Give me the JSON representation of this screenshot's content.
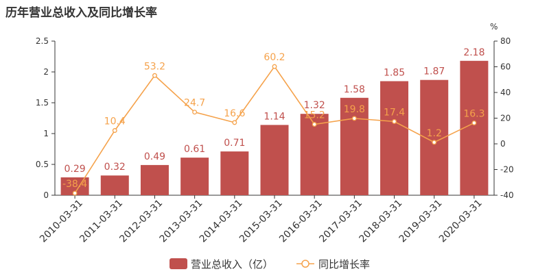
{
  "chart_data": {
    "type": "bar",
    "title": "历年营业总收入及同比增长率",
    "categories": [
      "2010-03-31",
      "2011-03-31",
      "2012-03-31",
      "2013-03-31",
      "2014-03-31",
      "2015-03-31",
      "2016-03-31",
      "2017-03-31",
      "2018-03-31",
      "2019-03-31",
      "2020-03-31"
    ],
    "series": [
      {
        "name": "营业总收入（亿）",
        "type": "bar",
        "axis": "left",
        "color": "#c0504d",
        "values": [
          0.29,
          0.32,
          0.49,
          0.61,
          0.71,
          1.14,
          1.32,
          1.58,
          1.85,
          1.87,
          2.18
        ]
      },
      {
        "name": "同比增长率",
        "type": "line",
        "axis": "right",
        "color": "#f5a24b",
        "values": [
          -38.4,
          10.4,
          53.2,
          24.7,
          16.6,
          60.2,
          15.2,
          19.8,
          17.4,
          1.2,
          16.3
        ]
      }
    ],
    "y_left": {
      "min": 0,
      "max": 2.5,
      "ticks": [
        "0",
        "0.5",
        "1",
        "1.5",
        "2",
        "2.5"
      ]
    },
    "y_right": {
      "min": -40,
      "max": 80,
      "unit": "%",
      "ticks": [
        "-40",
        "-20",
        "0",
        "20",
        "40",
        "60",
        "80"
      ]
    },
    "legend_position": "bottom-center",
    "grid": false
  }
}
